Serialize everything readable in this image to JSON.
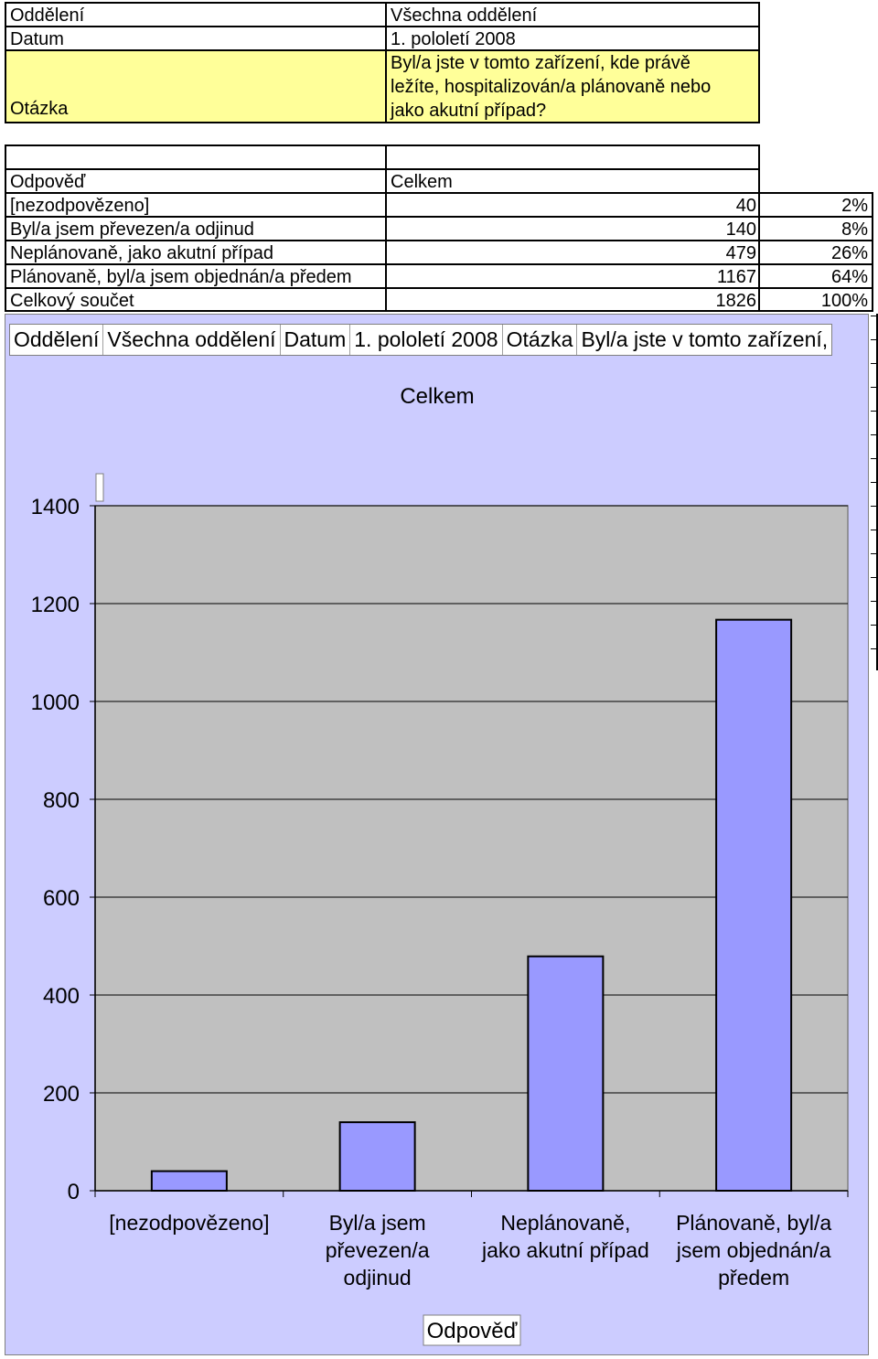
{
  "header": {
    "oddeleni_label": "Oddělení",
    "oddeleni_value": "Všechna oddělení",
    "datum_label": "Datum",
    "datum_value": "1. pololetí 2008",
    "otazka_label": "Otázka",
    "otazka_line1": "Byl/a jste v tomto zařízení, kde právě",
    "otazka_line2": "ležíte, hospitalizován/a plánovaně nebo",
    "otazka_line3": "jako akutní případ?"
  },
  "table": {
    "col_answer": "Odpověď",
    "col_total": "Celkem",
    "rows": [
      {
        "label": "[nezodpovězeno]",
        "count": "40",
        "pct": "2%"
      },
      {
        "label": "Byl/a jsem převezen/a odjinud",
        "count": "140",
        "pct": "8%"
      },
      {
        "label": "Neplánovaně, jako akutní případ",
        "count": "479",
        "pct": "26%"
      },
      {
        "label": "Plánovaně, byl/a jsem objednán/a předem",
        "count": "1167",
        "pct": "64%"
      },
      {
        "label": "Celkový součet",
        "count": "1826",
        "pct": "100%"
      }
    ]
  },
  "filter_bar": {
    "oddeleni_label": "Oddělení",
    "oddeleni_value": "Všechna oddělení",
    "datum_label": "Datum",
    "datum_value": "1. pololetí 2008",
    "otazka_label": "Otázka",
    "otazka_value": "Byl/a jste v tomto zařízení,"
  },
  "colors": {
    "chart_background": "#ccccff",
    "plot_background": "#c0c0c0",
    "bar_fill": "#9999ff",
    "header_highlight": "#ffff99"
  },
  "chart_data": {
    "type": "bar",
    "title": "Celkem",
    "xlabel": "Odpověď",
    "ylabel": "",
    "categories": [
      [
        "[nezodpovězeno]"
      ],
      [
        "Byl/a jsem",
        "převezen/a",
        "odjinud"
      ],
      [
        "Neplánovaně,",
        "jako akutní případ"
      ],
      [
        "Plánovaně, byl/a",
        "jsem objednán/a",
        "předem"
      ]
    ],
    "values": [
      40,
      140,
      479,
      1167
    ],
    "ylim": [
      0,
      1400
    ],
    "yticks": [
      "0",
      "200",
      "400",
      "600",
      "800",
      "1000",
      "1200",
      "1400"
    ],
    "grid": true,
    "legend": "none"
  }
}
